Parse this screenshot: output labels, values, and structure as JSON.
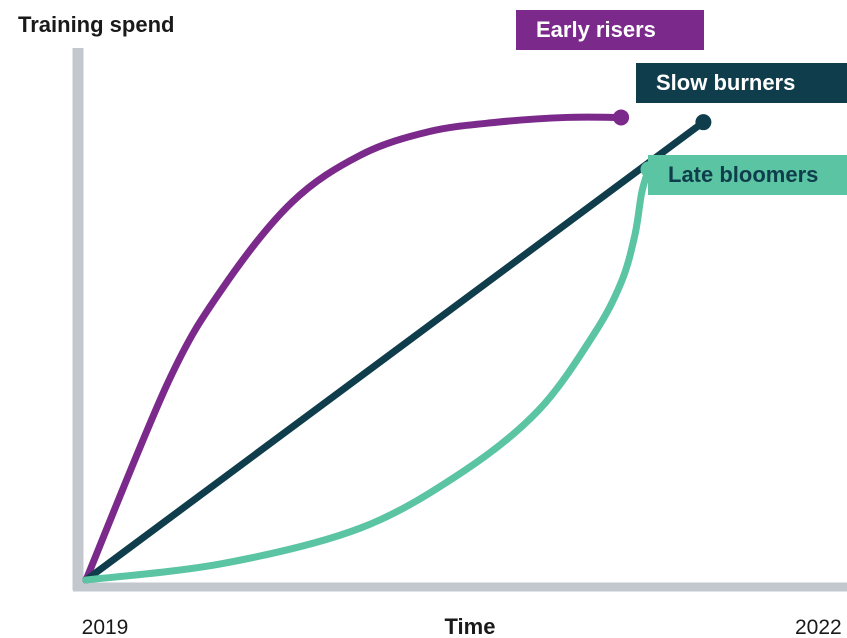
{
  "chart_data": {
    "type": "line",
    "ylabel": "Training spend",
    "xlabel": "Time",
    "x_tick_labels": [
      "2019",
      "2022"
    ],
    "y_tick_labels": [],
    "grid": false,
    "legend": "none (series labeled directly at line ends)",
    "series": [
      {
        "name": "Early risers",
        "color": "#7b2a8b",
        "shape": "concave — rises quickly, then levels off",
        "points": [
          [
            0,
            0
          ],
          [
            0.12,
            0.42
          ],
          [
            0.2,
            0.62
          ],
          [
            0.3,
            0.8
          ],
          [
            0.4,
            0.9
          ],
          [
            0.5,
            0.95
          ],
          [
            0.6,
            0.97
          ],
          [
            0.7,
            0.98
          ],
          [
            0.78,
            0.98
          ]
        ]
      },
      {
        "name": "Slow burners",
        "color": "#0f3d4c",
        "shape": "linear — steady rise",
        "points": [
          [
            0,
            0
          ],
          [
            0.9,
            0.97
          ]
        ]
      },
      {
        "name": "Late bloomers",
        "color": "#5bc4a2",
        "shape": "convex — slow start, sharp rise at the end",
        "points": [
          [
            0,
            0
          ],
          [
            0.2,
            0.035
          ],
          [
            0.4,
            0.11
          ],
          [
            0.55,
            0.23
          ],
          [
            0.66,
            0.36
          ],
          [
            0.74,
            0.52
          ],
          [
            0.78,
            0.63
          ],
          [
            0.8,
            0.73
          ],
          [
            0.81,
            0.82
          ],
          [
            0.82,
            0.87
          ]
        ]
      }
    ]
  }
}
